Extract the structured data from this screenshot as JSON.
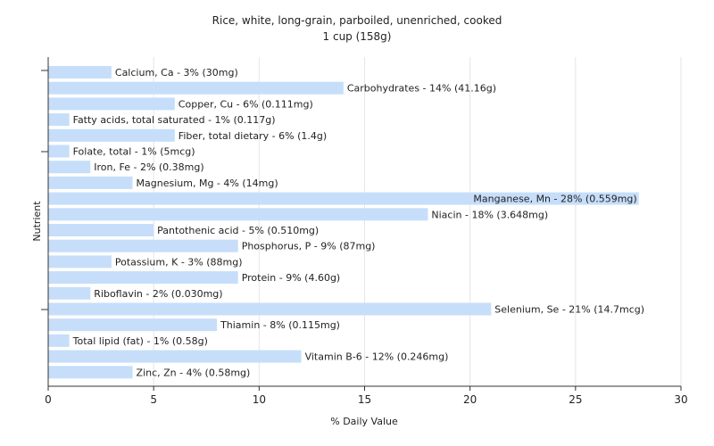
{
  "chart_data": {
    "type": "bar",
    "orientation": "horizontal",
    "title": "Rice, white, long-grain, parboiled, unenriched, cooked",
    "subtitle": "1 cup (158g)",
    "xlabel": "% Daily Value",
    "ylabel": "Nutrient",
    "xlim": [
      0,
      30
    ],
    "xticks": [
      0,
      5,
      10,
      15,
      20,
      25,
      30
    ],
    "grid": true,
    "bar_color": "#c6defa",
    "categories": [
      "Calcium, Ca",
      "Carbohydrates",
      "Copper, Cu",
      "Fatty acids, total saturated",
      "Fiber, total dietary",
      "Folate, total",
      "Iron, Fe",
      "Magnesium, Mg",
      "Manganese, Mn",
      "Niacin",
      "Pantothenic acid",
      "Phosphorus, P",
      "Potassium, K",
      "Protein",
      "Riboflavin",
      "Selenium, Se",
      "Thiamin",
      "Total lipid (fat)",
      "Vitamin B-6",
      "Zinc, Zn"
    ],
    "values": [
      3,
      14,
      6,
      1,
      6,
      1,
      2,
      4,
      28,
      18,
      5,
      9,
      3,
      9,
      2,
      21,
      8,
      1,
      12,
      4
    ],
    "labels": [
      "Calcium, Ca - 3% (30mg)",
      "Carbohydrates - 14% (41.16g)",
      "Copper, Cu - 6% (0.111mg)",
      "Fatty acids, total saturated - 1% (0.117g)",
      "Fiber, total dietary - 6% (1.4g)",
      "Folate, total - 1% (5mcg)",
      "Iron, Fe - 2% (0.38mg)",
      "Magnesium, Mg - 4% (14mg)",
      "Manganese, Mn - 28% (0.559mg)",
      "Niacin - 18% (3.648mg)",
      "Pantothenic acid - 5% (0.510mg)",
      "Phosphorus, P - 9% (87mg)",
      "Potassium, K - 3% (88mg)",
      "Protein - 9% (4.60g)",
      "Riboflavin - 2% (0.030mg)",
      "Selenium, Se - 21% (14.7mcg)",
      "Thiamin - 8% (0.115mg)",
      "Total lipid (fat) - 1% (0.58g)",
      "Vitamin B-6 - 12% (0.246mg)",
      "Zinc, Zn - 4% (0.58mg)"
    ]
  }
}
